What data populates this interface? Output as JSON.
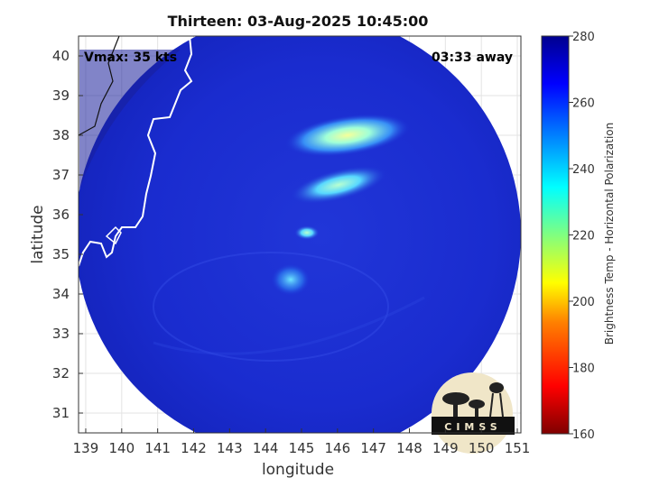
{
  "title": "Thirteen: 03-Aug-2025 10:45:00",
  "annotations": {
    "vmax": "Vmax: 35 kts",
    "time_away": "03:33 away"
  },
  "logo_text": "CIMSS",
  "colors": {
    "colorbar": [
      "#7f0000",
      "#ff0000",
      "#ff8000",
      "#ffff00",
      "#80ff80",
      "#00ffff",
      "#0080ff",
      "#0000ff",
      "#00008f"
    ],
    "disk_base": "#1a2fd6",
    "coastline": "#ffffff"
  },
  "chart_data": {
    "type": "heatmap",
    "title": "Thirteen: 03-Aug-2025 10:45:00",
    "xlabel": "longitude",
    "ylabel": "latitude",
    "xlim": [
      138.8,
      151.1
    ],
    "ylim": [
      30.5,
      40.5
    ],
    "xticks": [
      "139",
      "140",
      "141",
      "142",
      "143",
      "144",
      "145",
      "146",
      "147",
      "148",
      "149",
      "150",
      "151"
    ],
    "yticks": [
      "31",
      "32",
      "33",
      "34",
      "35",
      "36",
      "37",
      "38",
      "39",
      "40"
    ],
    "grid": true,
    "colorbar": {
      "label": "Brightness Temp - Horizontal Polarization",
      "range": [
        160,
        280
      ],
      "ticks": [
        "160",
        "180",
        "200",
        "220",
        "240",
        "260",
        "280"
      ]
    },
    "features": [
      {
        "name": "cold cloud band",
        "lon": 145.9,
        "lat": 37.9,
        "tb": 232
      },
      {
        "name": "cold cloud band",
        "lon": 146.2,
        "lat": 36.8,
        "tb": 236
      },
      {
        "name": "convective cell",
        "lon": 144.9,
        "lat": 35.5,
        "tb": 242
      },
      {
        "name": "convective cell",
        "lon": 144.7,
        "lat": 34.4,
        "tb": 248
      }
    ]
  }
}
